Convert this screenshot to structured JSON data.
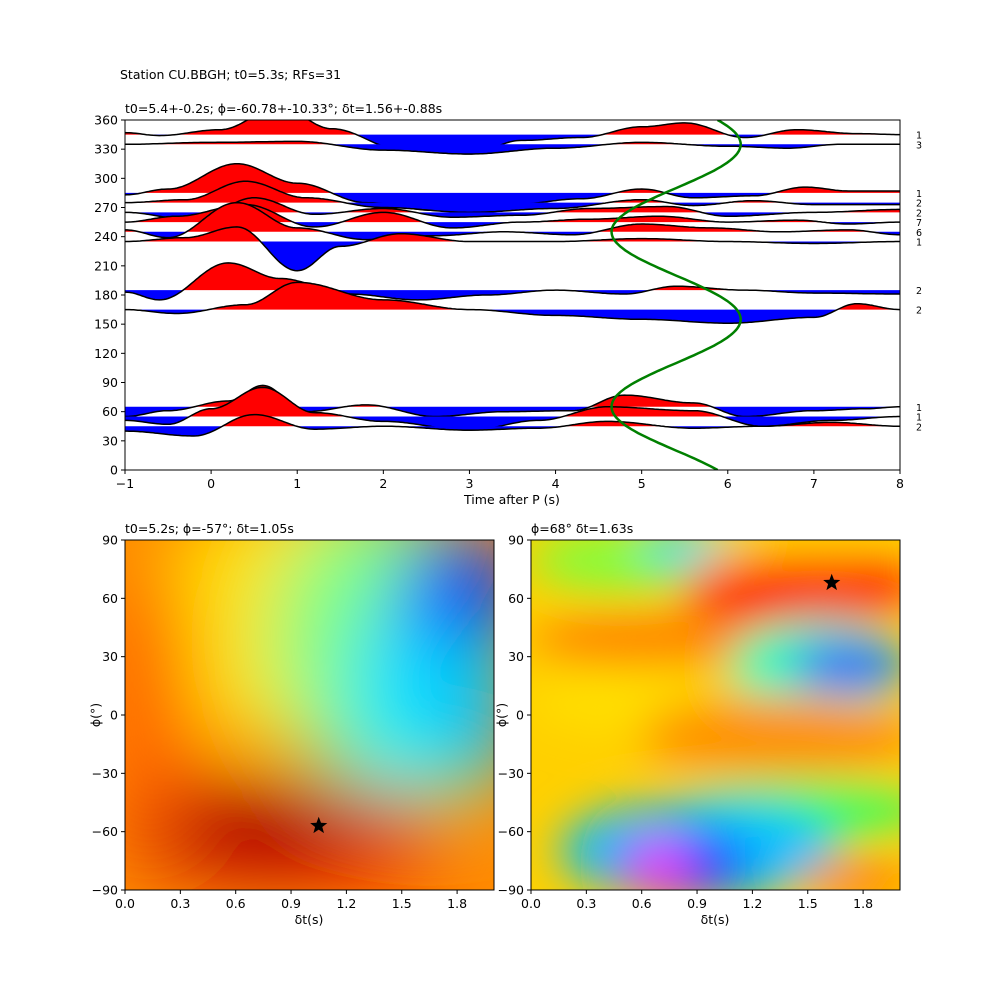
{
  "figure_title": "Station CU.BBGH; t0=5.3s; RFs=31",
  "chart_data": [
    {
      "type": "line",
      "title": "t0=5.4+-0.2s; ϕ=-60.78+-10.33°; δt=1.56+-0.88s",
      "xlabel": "Time after P (s)",
      "ylabel": "",
      "xlim": [
        -1,
        8
      ],
      "ylim": [
        0,
        360
      ],
      "xticks": [
        -1,
        0,
        1,
        2,
        3,
        4,
        5,
        6,
        7,
        8
      ],
      "yticks": [
        0,
        30,
        60,
        90,
        120,
        150,
        180,
        210,
        240,
        270,
        300,
        330,
        360
      ],
      "fill_positive_color": "#ff0000",
      "fill_negative_color": "#0000ff",
      "traces": [
        {
          "baseline": 345,
          "count": "1",
          "amp": [
            [
              -1,
              2
            ],
            [
              -0.6,
              -1
            ],
            [
              0.1,
              5
            ],
            [
              0.8,
              28
            ],
            [
              1.4,
              6
            ],
            [
              2.2,
              -15
            ],
            [
              3,
              -20
            ],
            [
              3.6,
              -6
            ],
            [
              4.3,
              -3
            ],
            [
              5,
              8
            ],
            [
              5.5,
              12
            ],
            [
              6.2,
              -3
            ],
            [
              6.8,
              5
            ],
            [
              7.5,
              1
            ],
            [
              8,
              0
            ]
          ]
        },
        {
          "baseline": 335,
          "count": "3",
          "amp": [
            [
              -1,
              0
            ],
            [
              0,
              2
            ],
            [
              1,
              3
            ],
            [
              2,
              -6
            ],
            [
              3,
              -10
            ],
            [
              4,
              -4
            ],
            [
              5,
              2
            ],
            [
              6,
              -2
            ],
            [
              6.7,
              -4
            ],
            [
              7.3,
              0
            ],
            [
              8,
              0
            ]
          ]
        },
        {
          "baseline": 285,
          "count": "1",
          "amp": [
            [
              -1,
              -2
            ],
            [
              -0.5,
              4
            ],
            [
              0.3,
              30
            ],
            [
              1,
              10
            ],
            [
              1.8,
              -10
            ],
            [
              2.6,
              -18
            ],
            [
              3.5,
              -12
            ],
            [
              4.3,
              -6
            ],
            [
              5,
              4
            ],
            [
              5.6,
              -5
            ],
            [
              6.3,
              -3
            ],
            [
              6.9,
              6
            ],
            [
              7.4,
              2
            ],
            [
              8,
              2
            ]
          ]
        },
        {
          "baseline": 275,
          "count": "2",
          "amp": [
            [
              -1,
              0
            ],
            [
              -0.3,
              3
            ],
            [
              0.4,
              22
            ],
            [
              1.1,
              5
            ],
            [
              2,
              -5
            ],
            [
              3,
              -10
            ],
            [
              4,
              -6
            ],
            [
              5,
              3
            ],
            [
              5.6,
              -3
            ],
            [
              6.3,
              2
            ],
            [
              7,
              -2
            ],
            [
              8,
              -2
            ]
          ]
        },
        {
          "baseline": 265,
          "count": "2",
          "amp": [
            [
              -1,
              0
            ],
            [
              -0.2,
              -8
            ],
            [
              0.5,
              15
            ],
            [
              1.2,
              -2
            ],
            [
              2,
              4
            ],
            [
              2.8,
              -5
            ],
            [
              3.6,
              -3
            ],
            [
              4.4,
              4
            ],
            [
              5.3,
              6
            ],
            [
              6,
              -4
            ],
            [
              7,
              0
            ],
            [
              8,
              3
            ]
          ]
        },
        {
          "baseline": 255,
          "count": "7",
          "amp": [
            [
              -1,
              0
            ],
            [
              -0.4,
              6
            ],
            [
              0.4,
              18
            ],
            [
              1.2,
              -5
            ],
            [
              2,
              10
            ],
            [
              2.8,
              -6
            ],
            [
              3.6,
              0
            ],
            [
              4.4,
              3
            ],
            [
              5.2,
              6
            ],
            [
              6,
              0
            ],
            [
              6.8,
              2
            ],
            [
              7.4,
              -2
            ],
            [
              8,
              0
            ]
          ]
        },
        {
          "baseline": 245,
          "count": "6",
          "amp": [
            [
              -1,
              2
            ],
            [
              -0.5,
              -6
            ],
            [
              0.3,
              30
            ],
            [
              1,
              4
            ],
            [
              1.8,
              -8
            ],
            [
              2.6,
              -4
            ],
            [
              3.4,
              0
            ],
            [
              4.2,
              -3
            ],
            [
              5,
              8
            ],
            [
              5.8,
              4
            ],
            [
              6.6,
              0
            ],
            [
              7.4,
              2
            ],
            [
              8,
              -3
            ]
          ]
        },
        {
          "baseline": 235,
          "count": "1",
          "amp": [
            [
              -1,
              0
            ],
            [
              -0.3,
              4
            ],
            [
              0.3,
              15
            ],
            [
              1,
              -30
            ],
            [
              1.5,
              -5
            ],
            [
              2.2,
              8
            ],
            [
              3,
              0
            ],
            [
              4,
              0
            ],
            [
              5,
              3
            ],
            [
              6,
              0
            ],
            [
              7,
              -2
            ],
            [
              8,
              0
            ]
          ]
        },
        {
          "baseline": 185,
          "count": "2",
          "amp": [
            [
              -1,
              -2
            ],
            [
              -0.6,
              -10
            ],
            [
              0.2,
              28
            ],
            [
              0.8,
              12
            ],
            [
              1.6,
              -4
            ],
            [
              2.4,
              -10
            ],
            [
              3.2,
              -5
            ],
            [
              4,
              0
            ],
            [
              4.8,
              -4
            ],
            [
              5.4,
              4
            ],
            [
              6.2,
              0
            ],
            [
              7,
              -3
            ],
            [
              8,
              -4
            ]
          ]
        },
        {
          "baseline": 165,
          "count": "2",
          "amp": [
            [
              -1,
              0
            ],
            [
              -0.4,
              -4
            ],
            [
              0.4,
              5
            ],
            [
              1,
              28
            ],
            [
              2,
              10
            ],
            [
              3,
              0
            ],
            [
              4,
              -6
            ],
            [
              5,
              -10
            ],
            [
              6,
              -14
            ],
            [
              7,
              -8
            ],
            [
              7.5,
              6
            ],
            [
              8,
              0
            ]
          ]
        },
        {
          "baseline": 65,
          "count": "1",
          "amp": [
            [
              -1,
              -10
            ],
            [
              -0.5,
              -4
            ],
            [
              0.2,
              6
            ],
            [
              0.6,
              22
            ],
            [
              1.1,
              -5
            ],
            [
              1.8,
              2
            ],
            [
              2.6,
              -10
            ],
            [
              3.4,
              -5
            ],
            [
              4.2,
              -4
            ],
            [
              4.8,
              12
            ],
            [
              5.6,
              4
            ],
            [
              6.2,
              -10
            ],
            [
              7,
              -4
            ],
            [
              7.6,
              -2
            ],
            [
              8,
              0
            ]
          ]
        },
        {
          "baseline": 55,
          "count": "1",
          "amp": [
            [
              -1,
              -4
            ],
            [
              -0.5,
              -8
            ],
            [
              0,
              8
            ],
            [
              0.6,
              30
            ],
            [
              1.2,
              4
            ],
            [
              2,
              -5
            ],
            [
              3,
              -14
            ],
            [
              3.8,
              -4
            ],
            [
              4.6,
              10
            ],
            [
              5.6,
              6
            ],
            [
              6.4,
              -10
            ],
            [
              7.2,
              -4
            ],
            [
              8,
              0
            ]
          ]
        },
        {
          "baseline": 45,
          "count": "2",
          "amp": [
            [
              -1,
              -5
            ],
            [
              -0.2,
              -10
            ],
            [
              0.5,
              12
            ],
            [
              1.2,
              -3
            ],
            [
              2,
              0
            ],
            [
              3,
              -4
            ],
            [
              3.8,
              -2
            ],
            [
              4.6,
              5
            ],
            [
              5.6,
              -2
            ],
            [
              6.4,
              0
            ],
            [
              7.2,
              4
            ],
            [
              8,
              0
            ]
          ]
        }
      ],
      "fit_curve": {
        "color": "#008000",
        "amplitude_s": 0.75,
        "center_s": 5.4,
        "period_deg": 180,
        "phase_deg": 20
      },
      "count_labels_side": "right"
    },
    {
      "type": "heatmap",
      "title": "t0=5.2s; ϕ=-57°; δt=1.05s",
      "xlabel": "δt(s)",
      "ylabel": "ϕ(°)",
      "xlim": [
        0,
        2
      ],
      "ylim": [
        -90,
        90
      ],
      "xticks": [
        "0.0",
        "0.3",
        "0.6",
        "0.9",
        "1.2",
        "1.5",
        "1.8"
      ],
      "yticks": [
        "−90",
        "−60",
        "−30",
        "0",
        "30",
        "60",
        "90"
      ],
      "colormap": "jet",
      "marker": {
        "x": 1.05,
        "y": -57,
        "symbol": "star"
      }
    },
    {
      "type": "heatmap",
      "title": "ϕ=68° δt=1.63s",
      "xlabel": "δt(s)",
      "ylabel": "ϕ(°)",
      "xlim": [
        0,
        2
      ],
      "ylim": [
        -90,
        90
      ],
      "xticks": [
        "0.0",
        "0.3",
        "0.6",
        "0.9",
        "1.2",
        "1.5",
        "1.8"
      ],
      "yticks": [
        "−90",
        "−60",
        "−30",
        "0",
        "30",
        "60",
        "90"
      ],
      "colormap": "hsv",
      "marker": {
        "x": 1.63,
        "y": 68,
        "symbol": "star"
      }
    }
  ]
}
